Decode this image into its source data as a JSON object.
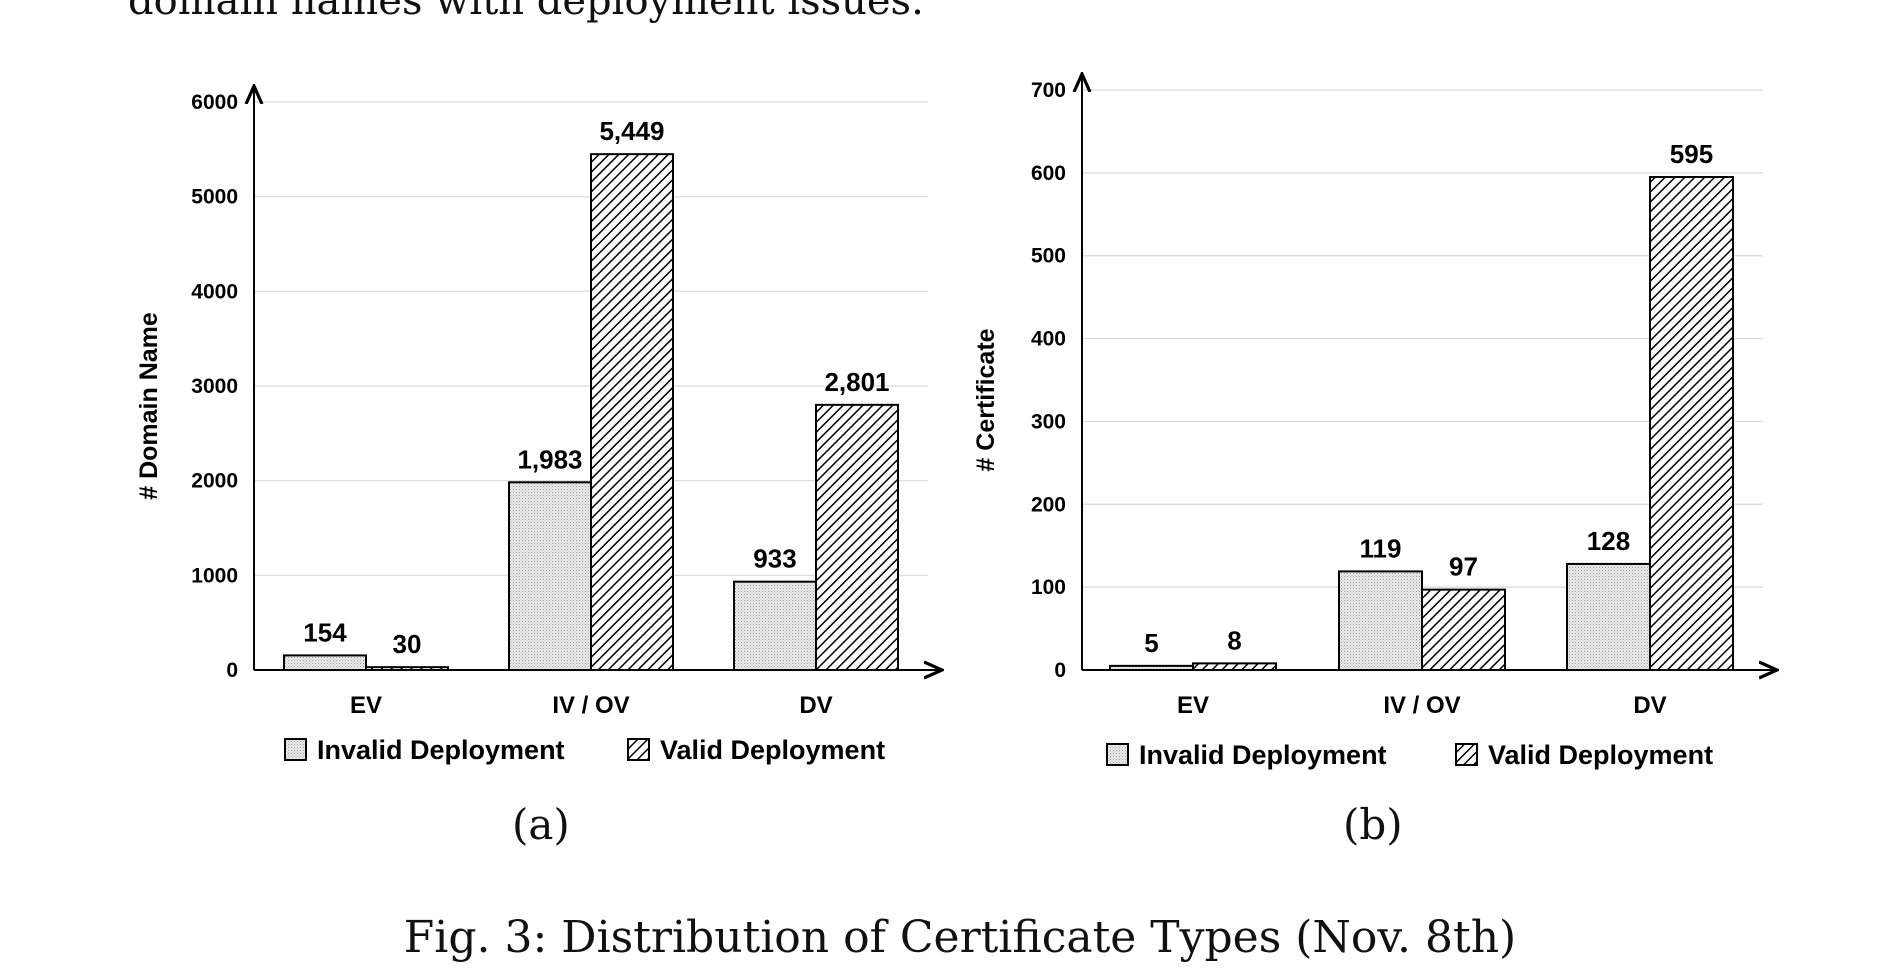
{
  "context_text": "domain names with deployment issues.",
  "caption": "Fig. 3: Distribution of Certificate Types (Nov. 8th)",
  "colors": {
    "axis": "#000000",
    "grid": "#d9d9d9",
    "invalid_fill": "#e6e6e6",
    "valid_hatch": "#000000"
  },
  "chart_data": [
    {
      "panel_label": "(a)",
      "type": "bar",
      "ylabel": "# Domain Name",
      "ylim": [
        0,
        6000
      ],
      "yticks": [
        "0",
        "1000",
        "2000",
        "3000",
        "4000",
        "5000",
        "6000"
      ],
      "ytick_values": [
        0,
        1000,
        2000,
        3000,
        4000,
        5000,
        6000
      ],
      "grid": true,
      "legend_position": "bottom",
      "categories": [
        "EV",
        "IV / OV",
        "DV"
      ],
      "series": [
        {
          "name": "Invalid Deployment",
          "pattern": "dots",
          "values": [
            154,
            1983,
            933
          ],
          "labels": [
            "154",
            "1,983",
            "933"
          ]
        },
        {
          "name": "Valid Deployment",
          "pattern": "hatch",
          "values": [
            30,
            5449,
            2801
          ],
          "labels": [
            "30",
            "5,449",
            "2,801"
          ]
        }
      ]
    },
    {
      "panel_label": "(b)",
      "type": "bar",
      "ylabel": "# Certificate",
      "ylim": [
        0,
        700
      ],
      "yticks": [
        "0",
        "100",
        "200",
        "300",
        "400",
        "500",
        "600",
        "700"
      ],
      "ytick_values": [
        0,
        100,
        200,
        300,
        400,
        500,
        600,
        700
      ],
      "grid": true,
      "legend_position": "bottom",
      "categories": [
        "EV",
        "IV / OV",
        "DV"
      ],
      "series": [
        {
          "name": "Invalid Deployment",
          "pattern": "dots",
          "values": [
            5,
            119,
            128
          ],
          "labels": [
            "5",
            "119",
            "128"
          ]
        },
        {
          "name": "Valid Deployment",
          "pattern": "hatch",
          "values": [
            8,
            97,
            595
          ],
          "labels": [
            "8",
            "97",
            "595"
          ]
        }
      ]
    }
  ]
}
